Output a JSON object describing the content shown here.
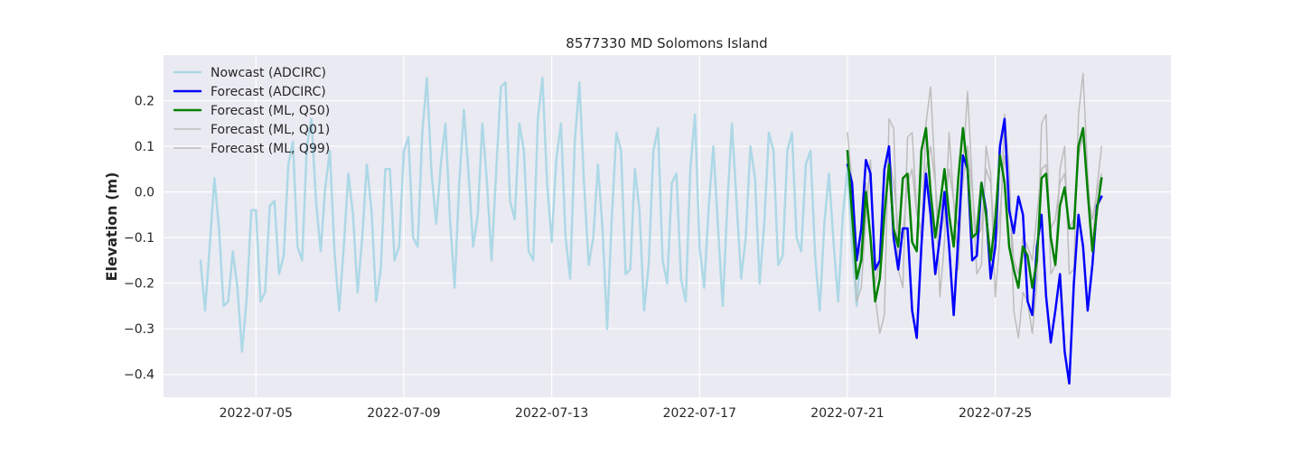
{
  "chart_data": {
    "type": "line",
    "title": "8577330 MD Solomons Island",
    "xlabel": "",
    "ylabel": "Elevation (m)",
    "xlim": [
      "2022-07-02T12:00",
      "2022-07-29T18:00"
    ],
    "ylim": [
      -0.45,
      0.3
    ],
    "grid": true,
    "legend_position": "top-left",
    "x_ticks": [
      "2022-07-05",
      "2022-07-09",
      "2022-07-13",
      "2022-07-17",
      "2022-07-21",
      "2022-07-25"
    ],
    "y_ticks": [
      "0.2",
      "0.1",
      "0.0",
      "−0.1",
      "−0.2",
      "−0.3",
      "−0.4"
    ],
    "legend": [
      {
        "label": "Nowcast (ADCIRC)",
        "color": "#add8e6"
      },
      {
        "label": "Forecast (ADCIRC)",
        "color": "#0000ff"
      },
      {
        "label": "Forecast (ML, Q50)",
        "color": "#008000"
      },
      {
        "label": "Forecast (ML, Q01)",
        "color": "#bdbdbd"
      },
      {
        "label": "Forecast (ML, Q99)",
        "color": "#bdbdbd"
      }
    ],
    "x_time": {
      "start": "2022-07-03T12:00",
      "step_hours": 3,
      "forecast_start": "2022-07-21T00:00"
    },
    "series": [
      {
        "name": "Nowcast (ADCIRC)",
        "color": "#add8e6",
        "width": 2.5,
        "starts": "2022-07-03T12:00",
        "values": [
          -0.15,
          -0.26,
          -0.12,
          0.03,
          -0.08,
          -0.25,
          -0.24,
          -0.13,
          -0.21,
          -0.35,
          -0.23,
          -0.04,
          -0.04,
          -0.24,
          -0.22,
          -0.03,
          -0.02,
          -0.18,
          -0.14,
          0.06,
          0.11,
          -0.12,
          -0.15,
          0.1,
          0.16,
          -0.02,
          -0.13,
          0.01,
          0.09,
          -0.13,
          -0.26,
          -0.12,
          0.04,
          -0.05,
          -0.22,
          -0.1,
          0.06,
          -0.04,
          -0.24,
          -0.17,
          0.05,
          0.05,
          -0.15,
          -0.12,
          0.09,
          0.12,
          -0.1,
          -0.12,
          0.13,
          0.25,
          0.04,
          -0.07,
          0.06,
          0.15,
          -0.06,
          -0.21,
          0.02,
          0.18,
          0.04,
          -0.12,
          -0.05,
          0.15,
          0.02,
          -0.15,
          0.05,
          0.23,
          0.24,
          -0.02,
          -0.06,
          0.15,
          0.09,
          -0.13,
          -0.15,
          0.16,
          0.25,
          0.02,
          -0.11,
          0.07,
          0.15,
          -0.1,
          -0.19,
          0.11,
          0.24,
          0.02,
          -0.16,
          -0.1,
          0.06,
          -0.08,
          -0.3,
          -0.06,
          0.13,
          0.09,
          -0.18,
          -0.17,
          0.05,
          -0.04,
          -0.26,
          -0.16,
          0.09,
          0.14,
          -0.15,
          -0.2,
          0.02,
          0.04,
          -0.19,
          -0.24,
          0.05,
          0.17,
          -0.12,
          -0.21,
          -0.03,
          0.1,
          -0.08,
          -0.25,
          -0.03,
          0.15,
          -0.02,
          -0.19,
          -0.1,
          0.1,
          0.03,
          -0.2,
          -0.07,
          0.13,
          0.09,
          -0.16,
          -0.14,
          0.09,
          0.13,
          -0.1,
          -0.13,
          0.06,
          0.09,
          -0.14,
          -0.26,
          -0.07,
          0.04,
          -0.11,
          -0.24,
          -0.05,
          0.05,
          -0.12,
          -0.25,
          -0.12
        ]
      },
      {
        "name": "Forecast (ML, Q01)",
        "color": "#bdbdbd",
        "width": 1.5,
        "starts": "2022-07-21T00:00",
        "values": [
          0.13,
          0.02,
          -0.24,
          -0.21,
          -0.06,
          0.07,
          -0.23,
          -0.31,
          -0.27,
          0.16,
          0.14,
          -0.17,
          -0.21,
          0.12,
          0.13,
          -0.04,
          -0.1,
          0.15,
          0.23,
          0.03,
          -0.23,
          -0.11,
          0.13,
          -0.02,
          -0.17,
          0.06,
          0.22,
          0.02,
          -0.18,
          -0.16,
          0.1,
          0.04,
          -0.23,
          -0.1,
          0.17,
          0.05,
          -0.26,
          -0.32,
          -0.22,
          -0.24,
          -0.31,
          -0.2,
          0.15,
          0.17,
          -0.18,
          -0.16,
          0.05,
          0.1,
          -0.18,
          -0.17,
          0.17,
          0.26,
          0.04,
          -0.12,
          0.01,
          0.1
        ]
      },
      {
        "name": "Forecast (ML, Q99)",
        "color": "#bdbdbd",
        "width": 1.5,
        "starts": "2022-07-21T00:00",
        "values": [
          0.08,
          -0.02,
          -0.15,
          -0.12,
          0.02,
          -0.1,
          -0.2,
          -0.15,
          -0.05,
          0.08,
          0.02,
          -0.08,
          -0.1,
          0.02,
          0.05,
          -0.05,
          -0.08,
          0.05,
          0.1,
          0.02,
          -0.1,
          -0.05,
          0.05,
          -0.02,
          -0.08,
          0.02,
          0.1,
          0.0,
          -0.1,
          -0.08,
          0.05,
          0.02,
          -0.12,
          -0.05,
          0.08,
          0.0,
          -0.15,
          -0.18,
          -0.1,
          -0.12,
          -0.15,
          -0.05,
          0.05,
          0.06,
          -0.08,
          -0.06,
          0.02,
          0.04,
          -0.08,
          -0.06,
          0.08,
          0.12,
          0.0,
          -0.06,
          0.0,
          0.04
        ]
      },
      {
        "name": "Forecast (ADCIRC)",
        "color": "#0000ff",
        "width": 2.5,
        "starts": "2022-07-21T00:00",
        "values": [
          0.06,
          0.02,
          -0.15,
          -0.08,
          0.07,
          0.04,
          -0.17,
          -0.15,
          0.05,
          0.1,
          -0.1,
          -0.17,
          -0.08,
          -0.08,
          -0.26,
          -0.32,
          -0.12,
          0.04,
          -0.05,
          -0.18,
          -0.1,
          0.0,
          -0.12,
          -0.27,
          -0.1,
          0.08,
          0.05,
          -0.15,
          -0.14,
          0.02,
          -0.04,
          -0.19,
          -0.12,
          0.1,
          0.16,
          -0.04,
          -0.09,
          -0.01,
          -0.05,
          -0.24,
          -0.27,
          -0.12,
          -0.05,
          -0.23,
          -0.33,
          -0.26,
          -0.18,
          -0.35,
          -0.42,
          -0.2,
          -0.05,
          -0.12,
          -0.26,
          -0.16,
          -0.03,
          -0.01
        ]
      },
      {
        "name": "Forecast (ML, Q50)",
        "color": "#008000",
        "width": 2.5,
        "starts": "2022-07-21T00:00",
        "values": [
          0.09,
          -0.05,
          -0.19,
          -0.15,
          0.0,
          -0.1,
          -0.24,
          -0.19,
          -0.05,
          0.06,
          -0.08,
          -0.12,
          0.03,
          0.04,
          -0.11,
          -0.13,
          0.09,
          0.14,
          0.0,
          -0.1,
          -0.03,
          0.05,
          -0.05,
          -0.12,
          0.03,
          0.14,
          0.05,
          -0.1,
          -0.09,
          0.02,
          -0.05,
          -0.15,
          -0.06,
          0.08,
          0.02,
          -0.12,
          -0.17,
          -0.21,
          -0.12,
          -0.14,
          -0.21,
          -0.15,
          0.03,
          0.04,
          -0.1,
          -0.16,
          -0.03,
          0.01,
          -0.08,
          -0.08,
          0.1,
          0.14,
          0.0,
          -0.13,
          -0.04,
          0.03
        ]
      }
    ]
  }
}
